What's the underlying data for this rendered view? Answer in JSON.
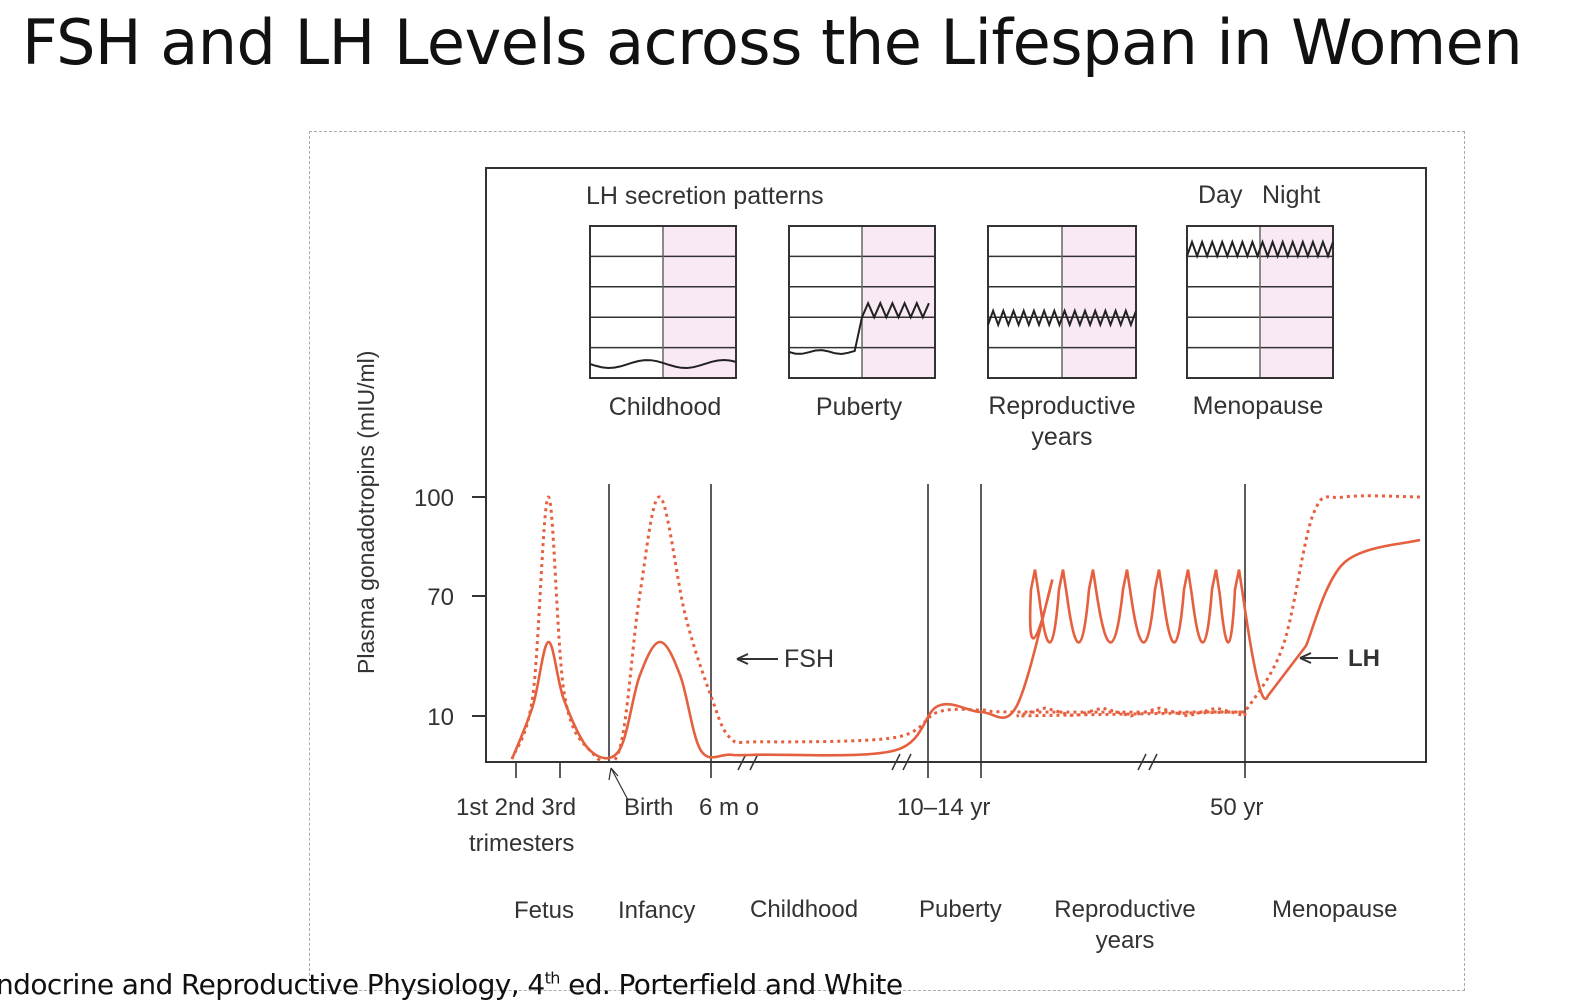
{
  "title": "FSH and LH Levels across the Lifespan in Women",
  "citation": {
    "pre": "ndocrine and Reproductive Physiology, 4",
    "sup": "th",
    "post": " ed. Porterfield and White"
  },
  "colors": {
    "curve": "#e5603f",
    "panel_night": "#f9e9f5",
    "axis": "#333333"
  },
  "chart_data": {
    "type": "line",
    "ylabel": "Plasma gonadotropins (mIU/ml)",
    "y_ticks": [
      "100",
      "70",
      "10"
    ],
    "x_ticks": [
      {
        "label": "1st 2nd 3rd",
        "label2": "trimesters"
      },
      {
        "label": "Birth"
      },
      {
        "label": "6 m o"
      },
      {
        "label": "10–14 yr"
      },
      {
        "label": "50 yr"
      }
    ],
    "stages": [
      "Fetus",
      "Infancy",
      "Childhood",
      "Puberty",
      "Reproductive years",
      "Menopause"
    ],
    "series": [
      {
        "name": "FSH",
        "style": "dotted",
        "points": [
          [
            0,
            0
          ],
          [
            0.4,
            20
          ],
          [
            0.7,
            100
          ],
          [
            1.0,
            22
          ],
          [
            1.5,
            2
          ],
          [
            2.2,
            2
          ],
          [
            2.6,
            70
          ],
          [
            3.0,
            100
          ],
          [
            3.5,
            60
          ],
          [
            4.0,
            20
          ],
          [
            4.5,
            5
          ],
          [
            5.3,
            4
          ],
          [
            6.6,
            5
          ],
          [
            7.4,
            12
          ],
          [
            8.0,
            13
          ],
          [
            8.5,
            12
          ],
          [
            11.7,
            12
          ],
          [
            12.2,
            45
          ],
          [
            12.6,
            95
          ],
          [
            13.0,
            100
          ],
          [
            14.0,
            100
          ]
        ]
      },
      {
        "name": "LH",
        "style": "solid",
        "points": [
          [
            0,
            0
          ],
          [
            0.4,
            15
          ],
          [
            0.7,
            47
          ],
          [
            1.0,
            18
          ],
          [
            1.5,
            2
          ],
          [
            2.2,
            2
          ],
          [
            2.6,
            30
          ],
          [
            3.0,
            47
          ],
          [
            3.4,
            30
          ],
          [
            3.8,
            2
          ],
          [
            4.5,
            1
          ],
          [
            5.3,
            1
          ],
          [
            6.6,
            2
          ],
          [
            7.4,
            15
          ],
          [
            8.0,
            12
          ],
          [
            8.5,
            15
          ],
          [
            9.0,
            75
          ],
          [
            11.7,
            75
          ],
          [
            12.0,
            20
          ],
          [
            12.5,
            45
          ],
          [
            13.0,
            80
          ],
          [
            14.0,
            87
          ]
        ]
      }
    ],
    "annotations": [
      "FSH",
      "LH"
    ],
    "insets": {
      "title": "LH secretion patterns",
      "day_night": [
        "Day",
        "Night"
      ],
      "panels": [
        "Childhood",
        "Puberty",
        "Reproductive years",
        "Menopause"
      ]
    }
  }
}
